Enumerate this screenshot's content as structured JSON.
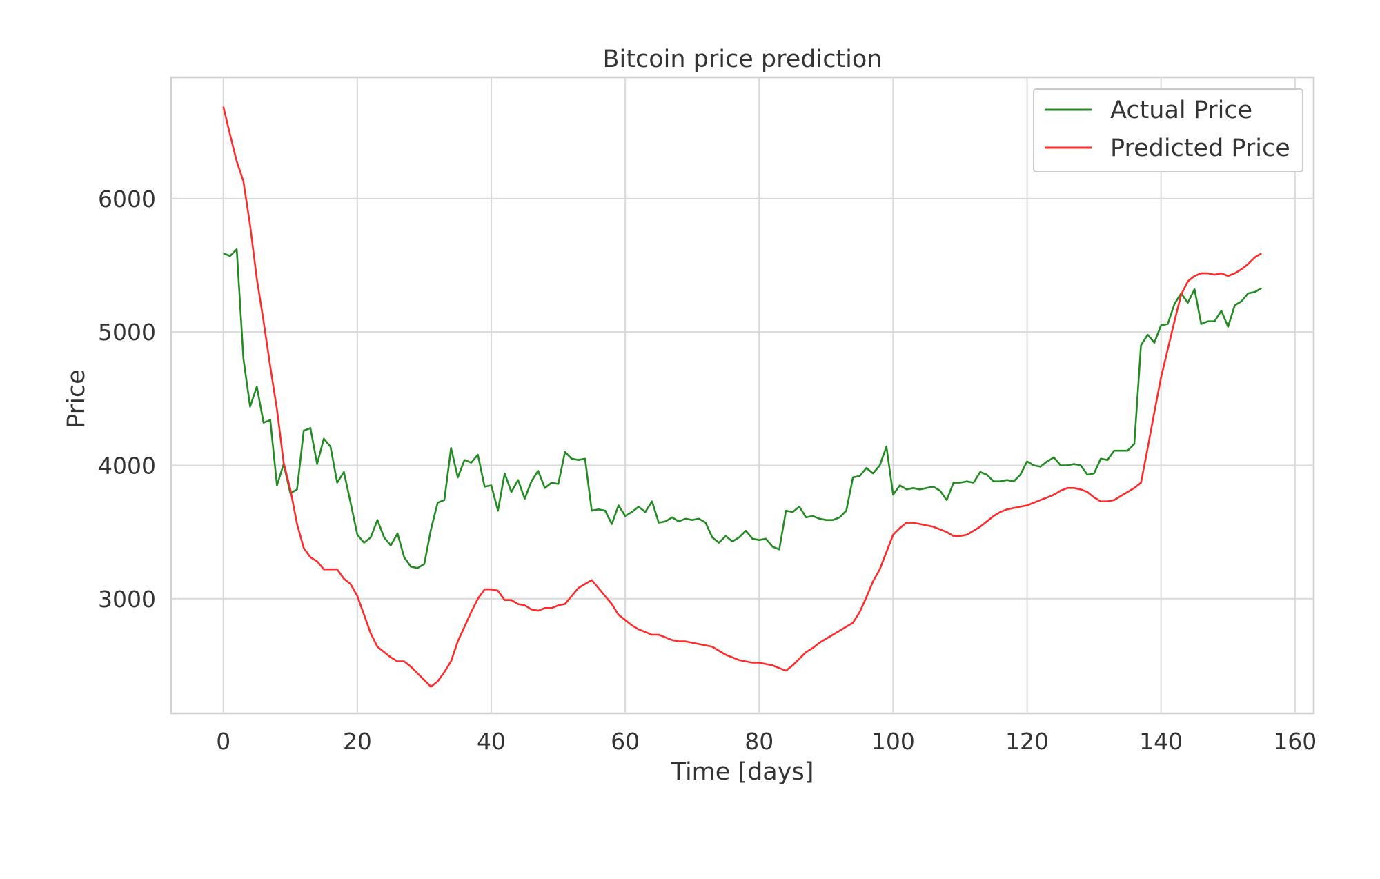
{
  "chart_data": {
    "type": "line",
    "title": "Bitcoin price prediction",
    "xlabel": "Time [days]",
    "ylabel": "Price",
    "xlim": [
      -7.8,
      162.8
    ],
    "ylim": [
      2140,
      6910
    ],
    "xticks": [
      0,
      20,
      40,
      60,
      80,
      100,
      120,
      140,
      160
    ],
    "yticks": [
      3000,
      4000,
      5000,
      6000
    ],
    "grid": true,
    "legend_position": "top-right",
    "series": [
      {
        "name": "Actual Price",
        "color": "#228b22",
        "x": [
          0,
          1,
          2,
          3,
          4,
          5,
          6,
          7,
          8,
          9,
          10,
          11,
          12,
          13,
          14,
          15,
          16,
          17,
          18,
          19,
          20,
          21,
          22,
          23,
          24,
          25,
          26,
          27,
          28,
          29,
          30,
          31,
          32,
          33,
          34,
          35,
          36,
          37,
          38,
          39,
          40,
          41,
          42,
          43,
          44,
          45,
          46,
          47,
          48,
          49,
          50,
          51,
          52,
          53,
          54,
          55,
          56,
          57,
          58,
          59,
          60,
          61,
          62,
          63,
          64,
          65,
          66,
          67,
          68,
          69,
          70,
          71,
          72,
          73,
          74,
          75,
          76,
          77,
          78,
          79,
          80,
          81,
          82,
          83,
          84,
          85,
          86,
          87,
          88,
          89,
          90,
          91,
          92,
          93,
          94,
          95,
          96,
          97,
          98,
          99,
          100,
          101,
          102,
          103,
          104,
          105,
          106,
          107,
          108,
          109,
          110,
          111,
          112,
          113,
          114,
          115,
          116,
          117,
          118,
          119,
          120,
          121,
          122,
          123,
          124,
          125,
          126,
          127,
          128,
          129,
          130,
          131,
          132,
          133,
          134,
          135,
          136,
          137,
          138,
          139,
          140,
          141,
          142,
          143,
          144,
          145,
          146,
          147,
          148,
          149,
          150,
          151,
          152,
          153,
          154,
          155
        ],
        "values": [
          5590,
          5570,
          5620,
          4800,
          4440,
          4590,
          4320,
          4340,
          3850,
          4010,
          3790,
          3820,
          4260,
          4280,
          4010,
          4200,
          4140,
          3870,
          3950,
          3720,
          3480,
          3420,
          3460,
          3590,
          3460,
          3400,
          3490,
          3310,
          3240,
          3230,
          3260,
          3520,
          3720,
          3740,
          4130,
          3910,
          4040,
          4020,
          4080,
          3840,
          3850,
          3660,
          3940,
          3800,
          3890,
          3750,
          3880,
          3960,
          3830,
          3870,
          3860,
          4100,
          4050,
          4040,
          4050,
          3660,
          3670,
          3660,
          3560,
          3700,
          3620,
          3650,
          3690,
          3650,
          3730,
          3570,
          3580,
          3610,
          3580,
          3600,
          3590,
          3600,
          3570,
          3460,
          3420,
          3470,
          3430,
          3460,
          3510,
          3450,
          3440,
          3450,
          3390,
          3370,
          3660,
          3650,
          3690,
          3610,
          3620,
          3600,
          3590,
          3590,
          3610,
          3660,
          3910,
          3920,
          3980,
          3940,
          4000,
          4140,
          3780,
          3850,
          3820,
          3830,
          3820,
          3830,
          3840,
          3810,
          3740,
          3870,
          3870,
          3880,
          3870,
          3950,
          3930,
          3880,
          3880,
          3890,
          3880,
          3930,
          4030,
          4000,
          3990,
          4030,
          4060,
          4000,
          4000,
          4010,
          4000,
          3930,
          3940,
          4050,
          4040,
          4110,
          4110,
          4110,
          4160,
          4900,
          4980,
          4920,
          5050,
          5060,
          5210,
          5290,
          5220,
          5320,
          5060,
          5080,
          5080,
          5160,
          5040,
          5200,
          5230,
          5290,
          5300,
          5330
        ]
      },
      {
        "name": "Predicted Price",
        "color": "#ff2b2b",
        "x": [
          0,
          1,
          2,
          3,
          4,
          5,
          6,
          7,
          8,
          9,
          10,
          11,
          12,
          13,
          14,
          15,
          16,
          17,
          18,
          19,
          20,
          21,
          22,
          23,
          24,
          25,
          26,
          27,
          28,
          29,
          30,
          31,
          32,
          33,
          34,
          35,
          36,
          37,
          38,
          39,
          40,
          41,
          42,
          43,
          44,
          45,
          46,
          47,
          48,
          49,
          50,
          51,
          52,
          53,
          54,
          55,
          56,
          57,
          58,
          59,
          60,
          61,
          62,
          63,
          64,
          65,
          66,
          67,
          68,
          69,
          70,
          71,
          72,
          73,
          74,
          75,
          76,
          77,
          78,
          79,
          80,
          81,
          82,
          83,
          84,
          85,
          86,
          87,
          88,
          89,
          90,
          91,
          92,
          93,
          94,
          95,
          96,
          97,
          98,
          99,
          100,
          101,
          102,
          103,
          104,
          105,
          106,
          107,
          108,
          109,
          110,
          111,
          112,
          113,
          114,
          115,
          116,
          117,
          118,
          119,
          120,
          121,
          122,
          123,
          124,
          125,
          126,
          127,
          128,
          129,
          130,
          131,
          132,
          133,
          134,
          135,
          136,
          137,
          138,
          139,
          140,
          141,
          142,
          143,
          144,
          145,
          146,
          147,
          148,
          149,
          150,
          151,
          152,
          153,
          154,
          155
        ],
        "values": [
          6690,
          6480,
          6280,
          6130,
          5800,
          5400,
          5080,
          4740,
          4420,
          4020,
          3820,
          3560,
          3380,
          3310,
          3280,
          3220,
          3220,
          3220,
          3150,
          3110,
          3020,
          2880,
          2740,
          2640,
          2600,
          2560,
          2530,
          2530,
          2490,
          2440,
          2390,
          2340,
          2380,
          2450,
          2530,
          2680,
          2790,
          2900,
          3000,
          3070,
          3070,
          3060,
          2990,
          2990,
          2960,
          2950,
          2920,
          2910,
          2930,
          2930,
          2950,
          2960,
          3020,
          3080,
          3110,
          3140,
          3080,
          3020,
          2960,
          2880,
          2840,
          2800,
          2770,
          2750,
          2730,
          2730,
          2710,
          2690,
          2680,
          2680,
          2670,
          2660,
          2650,
          2640,
          2610,
          2580,
          2560,
          2540,
          2530,
          2520,
          2520,
          2510,
          2500,
          2480,
          2460,
          2500,
          2550,
          2600,
          2630,
          2670,
          2700,
          2730,
          2760,
          2790,
          2820,
          2900,
          3010,
          3130,
          3220,
          3350,
          3480,
          3530,
          3570,
          3570,
          3560,
          3550,
          3540,
          3520,
          3500,
          3470,
          3470,
          3480,
          3510,
          3540,
          3580,
          3620,
          3650,
          3670,
          3680,
          3690,
          3700,
          3720,
          3740,
          3760,
          3780,
          3810,
          3830,
          3830,
          3820,
          3800,
          3760,
          3730,
          3730,
          3740,
          3770,
          3800,
          3830,
          3870,
          4130,
          4400,
          4660,
          4870,
          5080,
          5280,
          5380,
          5420,
          5440,
          5440,
          5430,
          5440,
          5420,
          5440,
          5470,
          5510,
          5560,
          5590
        ]
      }
    ]
  }
}
